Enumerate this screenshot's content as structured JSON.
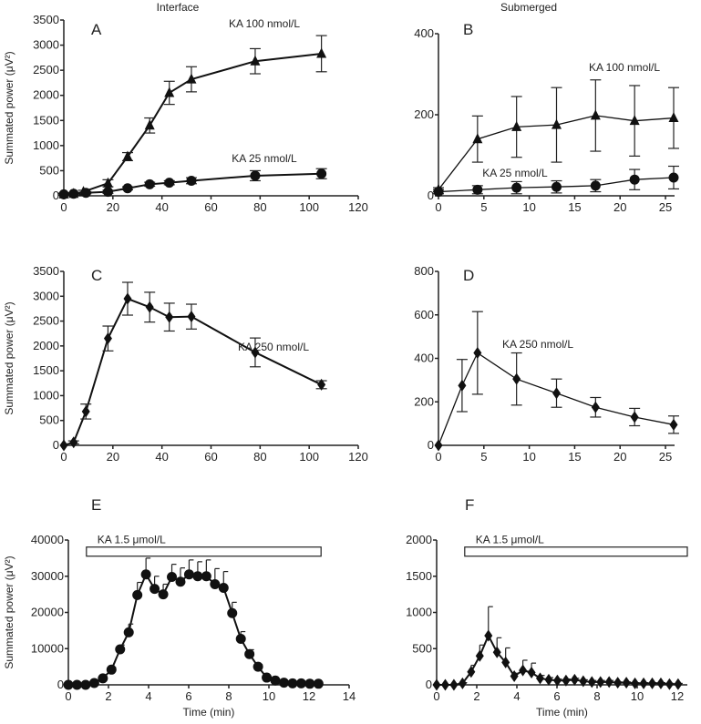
{
  "column_titles": [
    "Interface",
    "Submerged"
  ],
  "chart_data": [
    {
      "panel": "A",
      "type": "line",
      "column": "Interface",
      "ylabel": "Summated power (μV²)",
      "xlabel": "",
      "xlim": [
        0,
        120
      ],
      "ylim": [
        0,
        3500
      ],
      "xticks": [
        0,
        20,
        40,
        60,
        80,
        100,
        120
      ],
      "yticks": [
        0,
        500,
        1000,
        1500,
        2000,
        2500,
        3000,
        3500
      ],
      "series": [
        {
          "name": "KA 100 nmol/L",
          "marker": "triangle",
          "x": [
            0,
            4,
            8,
            18,
            26,
            35,
            43,
            52,
            78,
            105
          ],
          "y": [
            30,
            40,
            80,
            250,
            780,
            1400,
            2050,
            2320,
            2680,
            2830
          ],
          "err": [
            20,
            20,
            30,
            70,
            80,
            150,
            230,
            250,
            250,
            360
          ]
        },
        {
          "name": "KA 25 nmol/L",
          "marker": "circle",
          "x": [
            0,
            4,
            9,
            18,
            26,
            35,
            43,
            52,
            78,
            105
          ],
          "y": [
            30,
            40,
            60,
            80,
            150,
            230,
            260,
            300,
            400,
            440
          ],
          "err": [
            20,
            20,
            20,
            30,
            30,
            40,
            40,
            60,
            100,
            100
          ]
        }
      ]
    },
    {
      "panel": "B",
      "type": "line",
      "column": "Submerged",
      "ylabel": "",
      "xlabel": "",
      "xlim": [
        0,
        26
      ],
      "ylim": [
        0,
        400
      ],
      "xticks": [
        0,
        5,
        10,
        15,
        20,
        25
      ],
      "yticks": [
        0,
        200,
        400
      ],
      "series": [
        {
          "name": "KA 100 nmol/L",
          "marker": "triangle",
          "x": [
            0,
            4.3,
            8.6,
            13,
            17.3,
            21.6,
            25.9
          ],
          "y": [
            15,
            140,
            170,
            175,
            198,
            185,
            192
          ],
          "err": [
            5,
            57,
            75,
            92,
            88,
            87,
            75
          ]
        },
        {
          "name": "KA 25 nmol/L",
          "marker": "circle",
          "x": [
            0,
            4.3,
            8.6,
            13,
            17.3,
            21.6,
            25.9
          ],
          "y": [
            10,
            15,
            20,
            22,
            25,
            40,
            45
          ],
          "err": [
            5,
            10,
            15,
            15,
            15,
            25,
            28
          ]
        }
      ]
    },
    {
      "panel": "C",
      "type": "line",
      "column": "Interface",
      "ylabel": "Summated power (μV²)",
      "xlabel": "",
      "xlim": [
        0,
        120
      ],
      "ylim": [
        0,
        3500
      ],
      "xticks": [
        0,
        20,
        40,
        60,
        80,
        100,
        120
      ],
      "yticks": [
        0,
        500,
        1000,
        1500,
        2000,
        2500,
        3000,
        3500
      ],
      "series": [
        {
          "name": "KA 250 nmol/L",
          "marker": "diamond",
          "x": [
            0,
            4,
            9,
            18,
            26,
            35,
            43,
            52,
            78,
            105
          ],
          "y": [
            0,
            60,
            680,
            2150,
            2950,
            2780,
            2580,
            2590,
            1870,
            1220
          ],
          "err": [
            0,
            30,
            150,
            250,
            330,
            300,
            280,
            250,
            290,
            80
          ]
        }
      ]
    },
    {
      "panel": "D",
      "type": "line",
      "column": "Submerged",
      "ylabel": "",
      "xlabel": "",
      "xlim": [
        0,
        26
      ],
      "ylim": [
        0,
        800
      ],
      "xticks": [
        0,
        5,
        10,
        15,
        20,
        25
      ],
      "yticks": [
        0,
        200,
        400,
        600,
        800
      ],
      "series": [
        {
          "name": "KA 250 nmol/L",
          "marker": "diamond",
          "x": [
            0,
            2.6,
            4.3,
            8.6,
            13,
            17.3,
            21.6,
            25.9
          ],
          "y": [
            0,
            275,
            425,
            305,
            240,
            175,
            130,
            95
          ],
          "err": [
            0,
            120,
            190,
            120,
            65,
            45,
            40,
            40
          ]
        }
      ]
    },
    {
      "panel": "E",
      "type": "line",
      "column": "Interface",
      "ylabel": "Summated power (μV²)",
      "xlabel": "Time (min)",
      "xlim": [
        0,
        14
      ],
      "ylim": [
        0,
        40000
      ],
      "xticks": [
        0,
        2,
        4,
        6,
        8,
        10,
        12,
        14
      ],
      "yticks": [
        0,
        10000,
        20000,
        30000,
        40000
      ],
      "bar_label": "KA 1.5 μmol/L",
      "bar_range": [
        0.9,
        12.6
      ],
      "series": [
        {
          "name": "KA 1.5 μmol/L",
          "marker": "circle",
          "upper_err_only": true,
          "x": [
            0,
            0.43,
            0.86,
            1.29,
            1.72,
            2.15,
            2.58,
            3.01,
            3.44,
            3.87,
            4.3,
            4.73,
            5.16,
            5.59,
            6.02,
            6.45,
            6.88,
            7.31,
            7.74,
            8.17,
            8.6,
            9.03,
            9.46,
            9.89,
            10.32,
            10.75,
            11.18,
            11.61,
            12.04,
            12.47
          ],
          "y": [
            0,
            0,
            0,
            500,
            1800,
            4200,
            9800,
            14500,
            24800,
            30500,
            26500,
            25000,
            29800,
            28500,
            30500,
            30000,
            30000,
            27800,
            26800,
            19800,
            12700,
            8500,
            5000,
            2000,
            1200,
            600,
            400,
            400,
            300,
            300
          ],
          "err": [
            0,
            0,
            0,
            200,
            500,
            600,
            1200,
            2300,
            3500,
            4500,
            3500,
            2800,
            3500,
            3800,
            4000,
            4000,
            4500,
            4300,
            4500,
            3000,
            2000,
            1200,
            600,
            300,
            200,
            100,
            100,
            100,
            100,
            100
          ]
        }
      ]
    },
    {
      "panel": "F",
      "type": "line",
      "column": "Submerged",
      "ylabel": "",
      "xlabel": "Time (min)",
      "xlim": [
        0,
        12.5
      ],
      "ylim": [
        0,
        2000
      ],
      "xticks": [
        0,
        2,
        4,
        6,
        8,
        10,
        12
      ],
      "yticks": [
        0,
        500,
        1000,
        1500,
        2000
      ],
      "bar_label": "KA 1.5 μmol/L",
      "bar_range": [
        1.4,
        12.5
      ],
      "series": [
        {
          "name": "KA 1.5 μmol/L",
          "marker": "diamond",
          "upper_err_only": true,
          "x": [
            0,
            0.43,
            0.86,
            1.29,
            1.72,
            2.15,
            2.58,
            3.01,
            3.44,
            3.87,
            4.3,
            4.73,
            5.16,
            5.59,
            6.02,
            6.45,
            6.88,
            7.31,
            7.74,
            8.17,
            8.6,
            9.03,
            9.46,
            9.89,
            10.32,
            10.75,
            11.18,
            11.61,
            12.04
          ],
          "y": [
            0,
            0,
            0,
            20,
            180,
            400,
            680,
            450,
            310,
            120,
            200,
            170,
            90,
            70,
            60,
            60,
            70,
            50,
            40,
            40,
            40,
            30,
            30,
            20,
            20,
            20,
            20,
            10,
            10
          ],
          "err": [
            0,
            0,
            0,
            10,
            90,
            150,
            400,
            200,
            200,
            40,
            140,
            130,
            40,
            30,
            20,
            20,
            20,
            20,
            20,
            20,
            20,
            10,
            10,
            10,
            10,
            10,
            10,
            10,
            10
          ]
        }
      ]
    }
  ],
  "annotations": {
    "A": [
      "KA 100 nmol/L",
      "KA 25 nmol/L"
    ],
    "B": [
      "KA 100 nmol/L",
      "KA 25 nmol/L"
    ],
    "C": [
      "KA 250 nmol/L"
    ],
    "D": [
      "KA 250 nmol/L"
    ]
  }
}
